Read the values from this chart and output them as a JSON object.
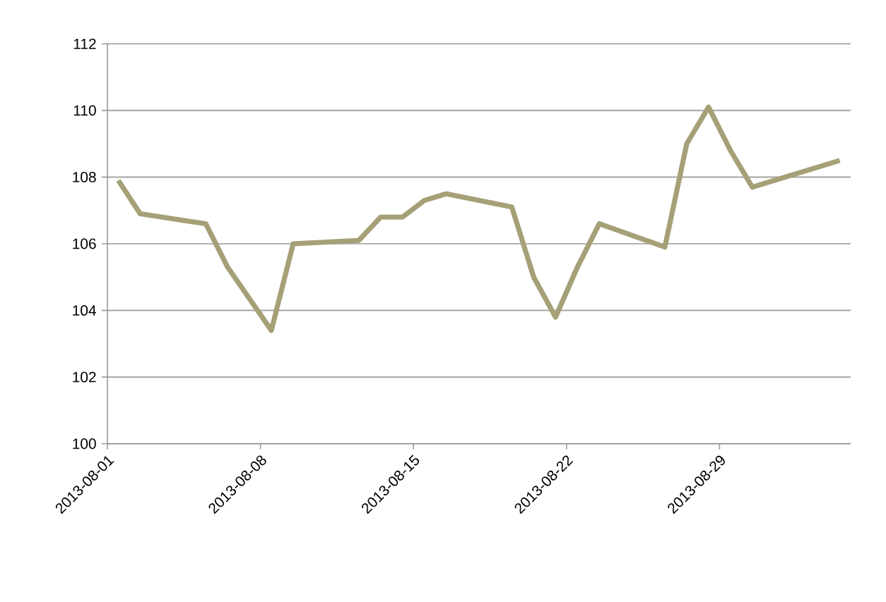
{
  "chart_data": {
    "type": "line",
    "x": [
      "2013-08-01T12:00",
      "2013-08-02T12:00",
      "2013-08-05T12:00",
      "2013-08-06T12:00",
      "2013-08-08T12:00",
      "2013-08-09T12:00",
      "2013-08-12T12:00",
      "2013-08-13T12:00",
      "2013-08-14T12:00",
      "2013-08-15T12:00",
      "2013-08-16T12:00",
      "2013-08-19T12:00",
      "2013-08-20T12:00",
      "2013-08-21T12:00",
      "2013-08-22T12:00",
      "2013-08-23T12:00",
      "2013-08-26T12:00",
      "2013-08-27T12:00",
      "2013-08-28T12:00",
      "2013-08-29T12:00",
      "2013-08-30T12:00",
      "2013-09-03T12:00"
    ],
    "series": [
      {
        "color": "#a5a077",
        "values": [
          107.9,
          106.9,
          106.6,
          105.3,
          103.4,
          106.0,
          106.1,
          106.8,
          106.8,
          107.3,
          107.5,
          107.1,
          105.0,
          103.8,
          105.3,
          106.6,
          105.9,
          109.0,
          110.1,
          108.8,
          107.7,
          108.5
        ]
      }
    ],
    "xlim": [
      "2013-08-01",
      "2013-09-04"
    ],
    "xticks": [
      "2013-08-01",
      "2013-08-08",
      "2013-08-15",
      "2013-08-22",
      "2013-08-29"
    ],
    "ylim": [
      100,
      112
    ],
    "yticks": [
      100,
      102,
      104,
      106,
      108,
      110,
      112
    ],
    "grid": "y",
    "marker": "none",
    "line_style": "solid"
  }
}
